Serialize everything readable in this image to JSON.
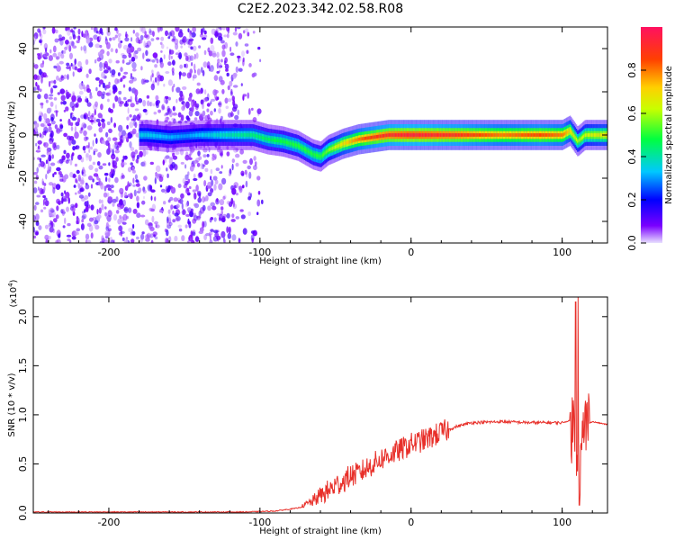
{
  "title": "C2E2.2023.342.02.58.R08",
  "chart_data": [
    {
      "type": "heatmap",
      "xlabel": "Height of straight line (km)",
      "ylabel": "Frequency (Hz)",
      "xlim": [
        -250,
        130
      ],
      "ylim": [
        -50,
        50
      ],
      "xticks": [
        -200,
        -100,
        0,
        100
      ],
      "yticks": [
        -40,
        -20,
        0,
        20,
        40
      ],
      "colorbar": {
        "label": "Normalized spectral amplitude",
        "range": [
          0,
          1
        ],
        "ticks": [
          0.0,
          0.2,
          0.4,
          0.6,
          0.8
        ],
        "tick_labels": [
          "0.0",
          "0.2",
          "0.4",
          "0.6",
          "0.8"
        ],
        "colormap": [
          "#e8e0ff",
          "#7a00ff",
          "#0000ff",
          "#00c8ff",
          "#00ff40",
          "#c8ff00",
          "#ffd000",
          "#ff4000",
          "#ff1060"
        ]
      },
      "noise_region_x": [
        -250,
        -100
      ],
      "trace_center": [
        [
          -175,
          0
        ],
        [
          -160,
          -1
        ],
        [
          -140,
          0
        ],
        [
          -120,
          0
        ],
        [
          -105,
          0
        ],
        [
          -95,
          -2
        ],
        [
          -85,
          -3
        ],
        [
          -75,
          -5
        ],
        [
          -65,
          -9
        ],
        [
          -60,
          -10
        ],
        [
          -55,
          -7
        ],
        [
          -45,
          -4
        ],
        [
          -35,
          -2
        ],
        [
          -25,
          -1
        ],
        [
          -15,
          0
        ],
        [
          0,
          0
        ],
        [
          20,
          0
        ],
        [
          50,
          0
        ],
        [
          80,
          0
        ],
        [
          100,
          0
        ],
        [
          105,
          2
        ],
        [
          110,
          -3
        ],
        [
          115,
          0
        ],
        [
          130,
          0
        ]
      ],
      "trace_peak": [
        [
          -175,
          0.35
        ],
        [
          -150,
          0.3
        ],
        [
          -120,
          0.4
        ],
        [
          -100,
          0.45
        ],
        [
          -80,
          0.5
        ],
        [
          -60,
          0.5
        ],
        [
          -45,
          0.7
        ],
        [
          -30,
          0.85
        ],
        [
          -20,
          0.9
        ],
        [
          0,
          0.95
        ],
        [
          30,
          0.9
        ],
        [
          60,
          0.8
        ],
        [
          85,
          0.85
        ],
        [
          100,
          0.8
        ],
        [
          110,
          0.6
        ],
        [
          130,
          0.7
        ]
      ]
    },
    {
      "type": "line",
      "xlabel": "Height of straight line (km)",
      "ylabel": "SNR (10 * v/v)",
      "y_multiplier_label": "(x10",
      "y_multiplier_exp": "4",
      "y_multiplier_close": ")",
      "xlim": [
        -250,
        130
      ],
      "ylim": [
        0,
        2.2
      ],
      "xticks": [
        -200,
        -100,
        0,
        100
      ],
      "yticks": [
        0.0,
        0.5,
        1.0,
        1.5,
        2.0
      ],
      "ytick_labels": [
        "0.0",
        "0.5",
        "1.0",
        "1.5",
        "2.0"
      ],
      "color": "#e8302a",
      "series": [
        {
          "x": [
            -250,
            -200,
            -150,
            -110,
            -90,
            -75,
            -65,
            -60,
            -55,
            -50,
            -45,
            -40,
            -35,
            -30,
            -25,
            -20,
            -10,
            0,
            10,
            20,
            30,
            40,
            60,
            80,
            100,
            105,
            108,
            110,
            112,
            115,
            120,
            130
          ],
          "y": [
            0.01,
            0.01,
            0.01,
            0.01,
            0.02,
            0.05,
            0.12,
            0.18,
            0.22,
            0.28,
            0.32,
            0.38,
            0.4,
            0.45,
            0.5,
            0.55,
            0.62,
            0.7,
            0.75,
            0.82,
            0.88,
            0.92,
            0.93,
            0.92,
            0.92,
            0.94,
            0.85,
            0.6,
            0.45,
            0.9,
            0.93,
            0.9
          ]
        }
      ]
    }
  ]
}
